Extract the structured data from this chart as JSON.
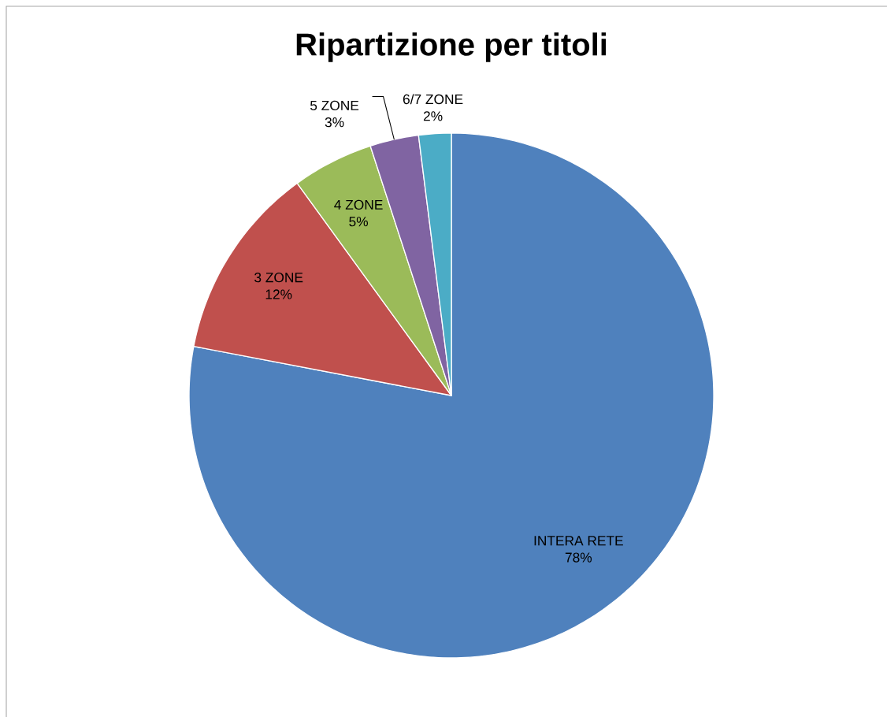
{
  "chart_data": {
    "type": "pie",
    "title": "Ripartizione per titoli",
    "categories": [
      "INTERA RETE",
      "3 ZONE",
      "4 ZONE",
      "5 ZONE",
      "6/7 ZONE"
    ],
    "values": [
      78,
      12,
      5,
      3,
      2
    ],
    "colors": [
      "#4f81bd",
      "#c0504d",
      "#9bbb59",
      "#8064a2",
      "#4bacc6"
    ],
    "value_labels": [
      "78%",
      "12%",
      "5%",
      "3%",
      "2%"
    ]
  }
}
